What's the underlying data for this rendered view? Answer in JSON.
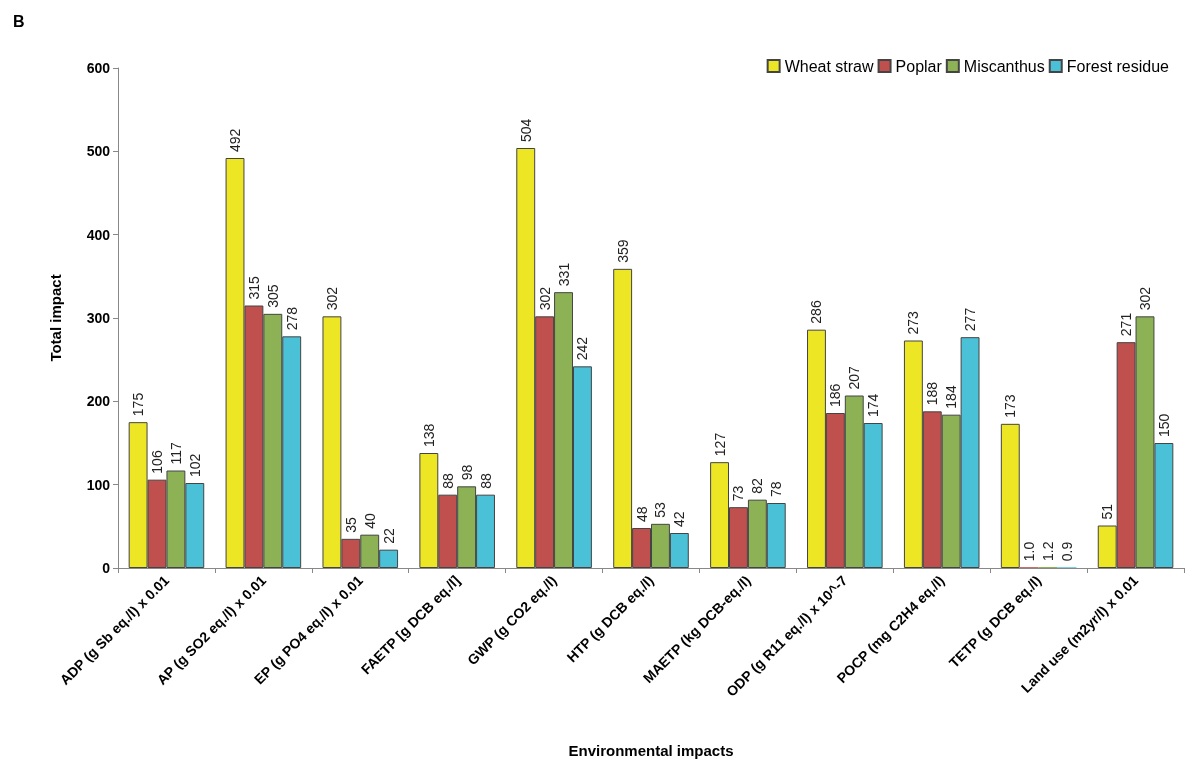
{
  "chart_data": {
    "type": "bar",
    "title": "B",
    "xlabel": "Environmental impacts",
    "ylabel": "Total impact",
    "categories": [
      "ADP (g Sb eq./l) x 0.01",
      "AP (g SO2 eq./l) x 0.01",
      "EP (g PO4 eq./l) x 0.01",
      "FAETP [g DCB eq./l]",
      "GWP (g CO2 eq./l)",
      "HTP (g DCB eq./l)",
      "MAETP (kg DCB-eq./l)",
      "ODP (g R11 eq./l) x 10^-7",
      "POCP (mg C2H4 eq./l)",
      "TETP (g DCB eq./l)",
      "Land use (m2yr/l) x 0.01"
    ],
    "series": [
      {
        "name": "Wheat straw",
        "color": "#ece624",
        "values": [
          175,
          492,
          302,
          138,
          504,
          359,
          127,
          286,
          273,
          173,
          51
        ],
        "value_labels": [
          "175",
          "492",
          "302",
          "138",
          "504",
          "359",
          "127",
          "286",
          "273",
          "173",
          "51"
        ]
      },
      {
        "name": "Poplar",
        "color": "#c0504d",
        "values": [
          106,
          315,
          35,
          88,
          302,
          48,
          73,
          186,
          188,
          1.0,
          271
        ],
        "value_labels": [
          "106",
          "315",
          "35",
          "88",
          "302",
          "48",
          "73",
          "186",
          "188",
          "1.0",
          "271"
        ]
      },
      {
        "name": "Miscanthus",
        "color": "#8db255",
        "values": [
          117,
          305,
          40,
          98,
          331,
          53,
          82,
          207,
          184,
          1.2,
          302
        ],
        "value_labels": [
          "117",
          "305",
          "40",
          "98",
          "331",
          "53",
          "82",
          "207",
          "184",
          "1.2",
          "302"
        ]
      },
      {
        "name": "Forest residue",
        "color": "#4bc1d8",
        "values": [
          102,
          278,
          22,
          88,
          242,
          42,
          78,
          174,
          277,
          0.9,
          150
        ],
        "value_labels": [
          "102",
          "278",
          "22",
          "88",
          "242",
          "42",
          "78",
          "174",
          "277",
          "0.9",
          "150"
        ]
      }
    ],
    "ylim": [
      0,
      600
    ],
    "yticks": [
      0,
      100,
      200,
      300,
      400,
      500,
      600
    ],
    "grid": false,
    "legend": "top right"
  }
}
